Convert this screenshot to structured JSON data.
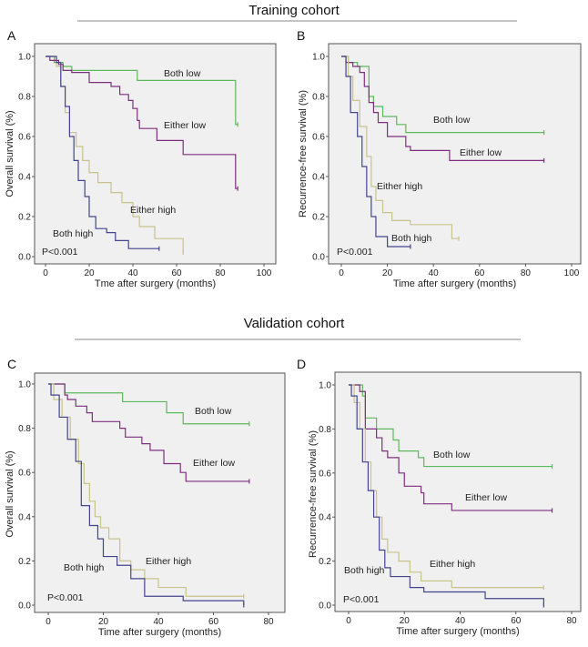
{
  "titles": {
    "top": "Training cohort",
    "bottom": "Validation cohort"
  },
  "colors": {
    "Both low": "#5cb85c",
    "Either low": "#7e2f80",
    "Either high": "#c9c28a",
    "Both high": "#44448f",
    "plot_bg": "#f0f0f0"
  },
  "chart_data": [
    {
      "panel": "A",
      "type": "line",
      "step": true,
      "xlabel": "Tme after surgery (months)",
      "ylabel": "Overall survival (%)",
      "xlim": [
        0,
        100
      ],
      "ylim": [
        0,
        1
      ],
      "xticks": [
        0,
        20,
        40,
        60,
        80,
        100
      ],
      "yticks": [
        "0.0",
        "0.2",
        "0.4",
        "0.6",
        "0.8",
        "1.0"
      ],
      "pvalue": "P<0.001",
      "grid": false,
      "series": [
        {
          "name": "Both low",
          "end": 88,
          "steps": [
            [
              0,
              1
            ],
            [
              4,
              0.97
            ],
            [
              8,
              0.95
            ],
            [
              12,
              0.93
            ],
            [
              42,
              0.88
            ],
            [
              87,
              0.66
            ]
          ]
        },
        {
          "name": "Either low",
          "end": 88,
          "steps": [
            [
              0,
              1
            ],
            [
              2,
              0.98
            ],
            [
              6,
              0.96
            ],
            [
              8,
              0.93
            ],
            [
              12,
              0.92
            ],
            [
              20,
              0.87
            ],
            [
              30,
              0.85
            ],
            [
              34,
              0.81
            ],
            [
              38,
              0.78
            ],
            [
              40,
              0.74
            ],
            [
              42,
              0.68
            ],
            [
              43,
              0.64
            ],
            [
              51,
              0.58
            ],
            [
              63,
              0.51
            ],
            [
              87,
              0.34
            ]
          ]
        },
        {
          "name": "Either high",
          "end": 63,
          "steps": [
            [
              0,
              1
            ],
            [
              5,
              0.95
            ],
            [
              7,
              0.85
            ],
            [
              9,
              0.72
            ],
            [
              11,
              0.62
            ],
            [
              14,
              0.55
            ],
            [
              17,
              0.48
            ],
            [
              20,
              0.42
            ],
            [
              24,
              0.37
            ],
            [
              30,
              0.32
            ],
            [
              35,
              0.27
            ],
            [
              40,
              0.2
            ],
            [
              43,
              0.15
            ],
            [
              50,
              0.09
            ],
            [
              63,
              0.02
            ]
          ]
        },
        {
          "name": "Both high",
          "end": 52,
          "steps": [
            [
              0,
              1
            ],
            [
              5,
              0.97
            ],
            [
              7,
              0.85
            ],
            [
              9,
              0.75
            ],
            [
              11,
              0.6
            ],
            [
              13,
              0.48
            ],
            [
              15,
              0.38
            ],
            [
              18,
              0.3
            ],
            [
              20,
              0.2
            ],
            [
              23,
              0.14
            ],
            [
              28,
              0.12
            ],
            [
              32,
              0.08
            ],
            [
              38,
              0.04
            ]
          ]
        }
      ]
    },
    {
      "panel": "B",
      "type": "line",
      "step": true,
      "xlabel": "Time after surgery (months)",
      "ylabel": "Recurrence-free survival (%)",
      "xlim": [
        0,
        100
      ],
      "ylim": [
        0,
        1
      ],
      "xticks": [
        0,
        20,
        40,
        60,
        80,
        100
      ],
      "yticks": [
        "0.0",
        "0.2",
        "0.4",
        "0.6",
        "0.8",
        "1.0"
      ],
      "pvalue": "P<0.001",
      "grid": false,
      "series": [
        {
          "name": "Both low",
          "end": 88,
          "steps": [
            [
              0,
              1
            ],
            [
              3,
              0.97
            ],
            [
              7,
              0.95
            ],
            [
              12,
              0.8
            ],
            [
              14,
              0.75
            ],
            [
              18,
              0.7
            ],
            [
              24,
              0.66
            ],
            [
              28,
              0.62
            ]
          ]
        },
        {
          "name": "Either low",
          "end": 88,
          "steps": [
            [
              0,
              1
            ],
            [
              2,
              0.97
            ],
            [
              5,
              0.95
            ],
            [
              8,
              0.92
            ],
            [
              10,
              0.85
            ],
            [
              12,
              0.77
            ],
            [
              14,
              0.72
            ],
            [
              16,
              0.67
            ],
            [
              20,
              0.6
            ],
            [
              28,
              0.55
            ],
            [
              30,
              0.53
            ],
            [
              47,
              0.48
            ]
          ]
        },
        {
          "name": "Either high",
          "end": 51,
          "steps": [
            [
              0,
              1
            ],
            [
              3,
              0.9
            ],
            [
              5,
              0.78
            ],
            [
              8,
              0.65
            ],
            [
              11,
              0.5
            ],
            [
              13,
              0.35
            ],
            [
              15,
              0.28
            ],
            [
              18,
              0.22
            ],
            [
              22,
              0.18
            ],
            [
              30,
              0.16
            ],
            [
              48,
              0.09
            ]
          ]
        },
        {
          "name": "Both high",
          "end": 30,
          "steps": [
            [
              0,
              1
            ],
            [
              2,
              0.9
            ],
            [
              4,
              0.72
            ],
            [
              7,
              0.6
            ],
            [
              9,
              0.45
            ],
            [
              11,
              0.3
            ],
            [
              13,
              0.2
            ],
            [
              15,
              0.1
            ],
            [
              20,
              0.05
            ]
          ]
        }
      ]
    },
    {
      "panel": "C",
      "type": "line",
      "step": true,
      "xlabel": "Time after surgery (months)",
      "ylabel": "Overall survival (%)",
      "xlim": [
        0,
        80
      ],
      "ylim": [
        0,
        1
      ],
      "xticks": [
        0,
        20,
        40,
        60,
        80
      ],
      "yticks": [
        "0.0",
        "0.2",
        "0.4",
        "0.6",
        "0.8",
        "1.0"
      ],
      "pvalue": "P<0.001",
      "grid": false,
      "series": [
        {
          "name": "Both low",
          "end": 73,
          "steps": [
            [
              0,
              1
            ],
            [
              6,
              0.96
            ],
            [
              27,
              0.92
            ],
            [
              43,
              0.87
            ],
            [
              49,
              0.82
            ]
          ]
        },
        {
          "name": "Either low",
          "end": 73,
          "steps": [
            [
              0,
              1
            ],
            [
              6,
              0.95
            ],
            [
              7,
              0.93
            ],
            [
              10,
              0.9
            ],
            [
              14,
              0.87
            ],
            [
              16,
              0.83
            ],
            [
              26,
              0.8
            ],
            [
              28,
              0.76
            ],
            [
              34,
              0.73
            ],
            [
              37,
              0.7
            ],
            [
              42,
              0.64
            ],
            [
              48,
              0.6
            ],
            [
              50,
              0.56
            ]
          ]
        },
        {
          "name": "Either high",
          "end": 71,
          "steps": [
            [
              0,
              1
            ],
            [
              2,
              0.93
            ],
            [
              5,
              0.85
            ],
            [
              8,
              0.75
            ],
            [
              11,
              0.64
            ],
            [
              13,
              0.55
            ],
            [
              15,
              0.47
            ],
            [
              17,
              0.4
            ],
            [
              19,
              0.35
            ],
            [
              22,
              0.3
            ],
            [
              26,
              0.2
            ],
            [
              30,
              0.16
            ],
            [
              35,
              0.12
            ],
            [
              40,
              0.08
            ],
            [
              50,
              0.04
            ]
          ]
        },
        {
          "name": "Both high",
          "end": 71,
          "steps": [
            [
              0,
              1
            ],
            [
              1,
              0.95
            ],
            [
              4,
              0.85
            ],
            [
              7,
              0.75
            ],
            [
              10,
              0.65
            ],
            [
              12,
              0.45
            ],
            [
              15,
              0.36
            ],
            [
              18,
              0.3
            ],
            [
              20,
              0.22
            ],
            [
              25,
              0.18
            ],
            [
              30,
              0.12
            ],
            [
              35,
              0.04
            ],
            [
              49,
              0.02
            ],
            [
              71,
              0.0
            ]
          ]
        }
      ]
    },
    {
      "panel": "D",
      "type": "line",
      "step": true,
      "xlabel": "Time after surgery (months)",
      "ylabel": "Recurrence-free survival (%)",
      "xlim": [
        0,
        80
      ],
      "ylim": [
        0,
        1
      ],
      "xticks": [
        0,
        20,
        40,
        60,
        80
      ],
      "yticks": [
        "0.0",
        "0.2",
        "0.4",
        "0.6",
        "0.8",
        "1.0"
      ],
      "pvalue": "P<0.001",
      "grid": false,
      "series": [
        {
          "name": "Both low",
          "end": 73,
          "steps": [
            [
              0,
              1
            ],
            [
              5,
              0.95
            ],
            [
              6,
              0.85
            ],
            [
              10,
              0.8
            ],
            [
              16,
              0.75
            ],
            [
              18,
              0.7
            ],
            [
              25,
              0.67
            ],
            [
              27,
              0.63
            ]
          ]
        },
        {
          "name": "Either low",
          "end": 73,
          "steps": [
            [
              0,
              1
            ],
            [
              4,
              0.97
            ],
            [
              6,
              0.8
            ],
            [
              10,
              0.76
            ],
            [
              12,
              0.7
            ],
            [
              14,
              0.67
            ],
            [
              18,
              0.6
            ],
            [
              20,
              0.54
            ],
            [
              26,
              0.51
            ],
            [
              27,
              0.46
            ],
            [
              37,
              0.43
            ]
          ]
        },
        {
          "name": "Either high",
          "end": 70,
          "steps": [
            [
              0,
              1
            ],
            [
              2,
              0.92
            ],
            [
              4,
              0.8
            ],
            [
              6,
              0.65
            ],
            [
              8,
              0.52
            ],
            [
              10,
              0.4
            ],
            [
              12,
              0.3
            ],
            [
              14,
              0.24
            ],
            [
              18,
              0.2
            ],
            [
              22,
              0.15
            ],
            [
              26,
              0.11
            ],
            [
              37,
              0.08
            ]
          ]
        },
        {
          "name": "Both high",
          "end": 70,
          "steps": [
            [
              0,
              1
            ],
            [
              1,
              0.95
            ],
            [
              3,
              0.8
            ],
            [
              5,
              0.65
            ],
            [
              7,
              0.52
            ],
            [
              9,
              0.4
            ],
            [
              11,
              0.25
            ],
            [
              13,
              0.17
            ],
            [
              15,
              0.13
            ],
            [
              22,
              0.08
            ],
            [
              27,
              0.06
            ],
            [
              49,
              0.03
            ],
            [
              70,
              0.0
            ]
          ]
        }
      ]
    }
  ]
}
